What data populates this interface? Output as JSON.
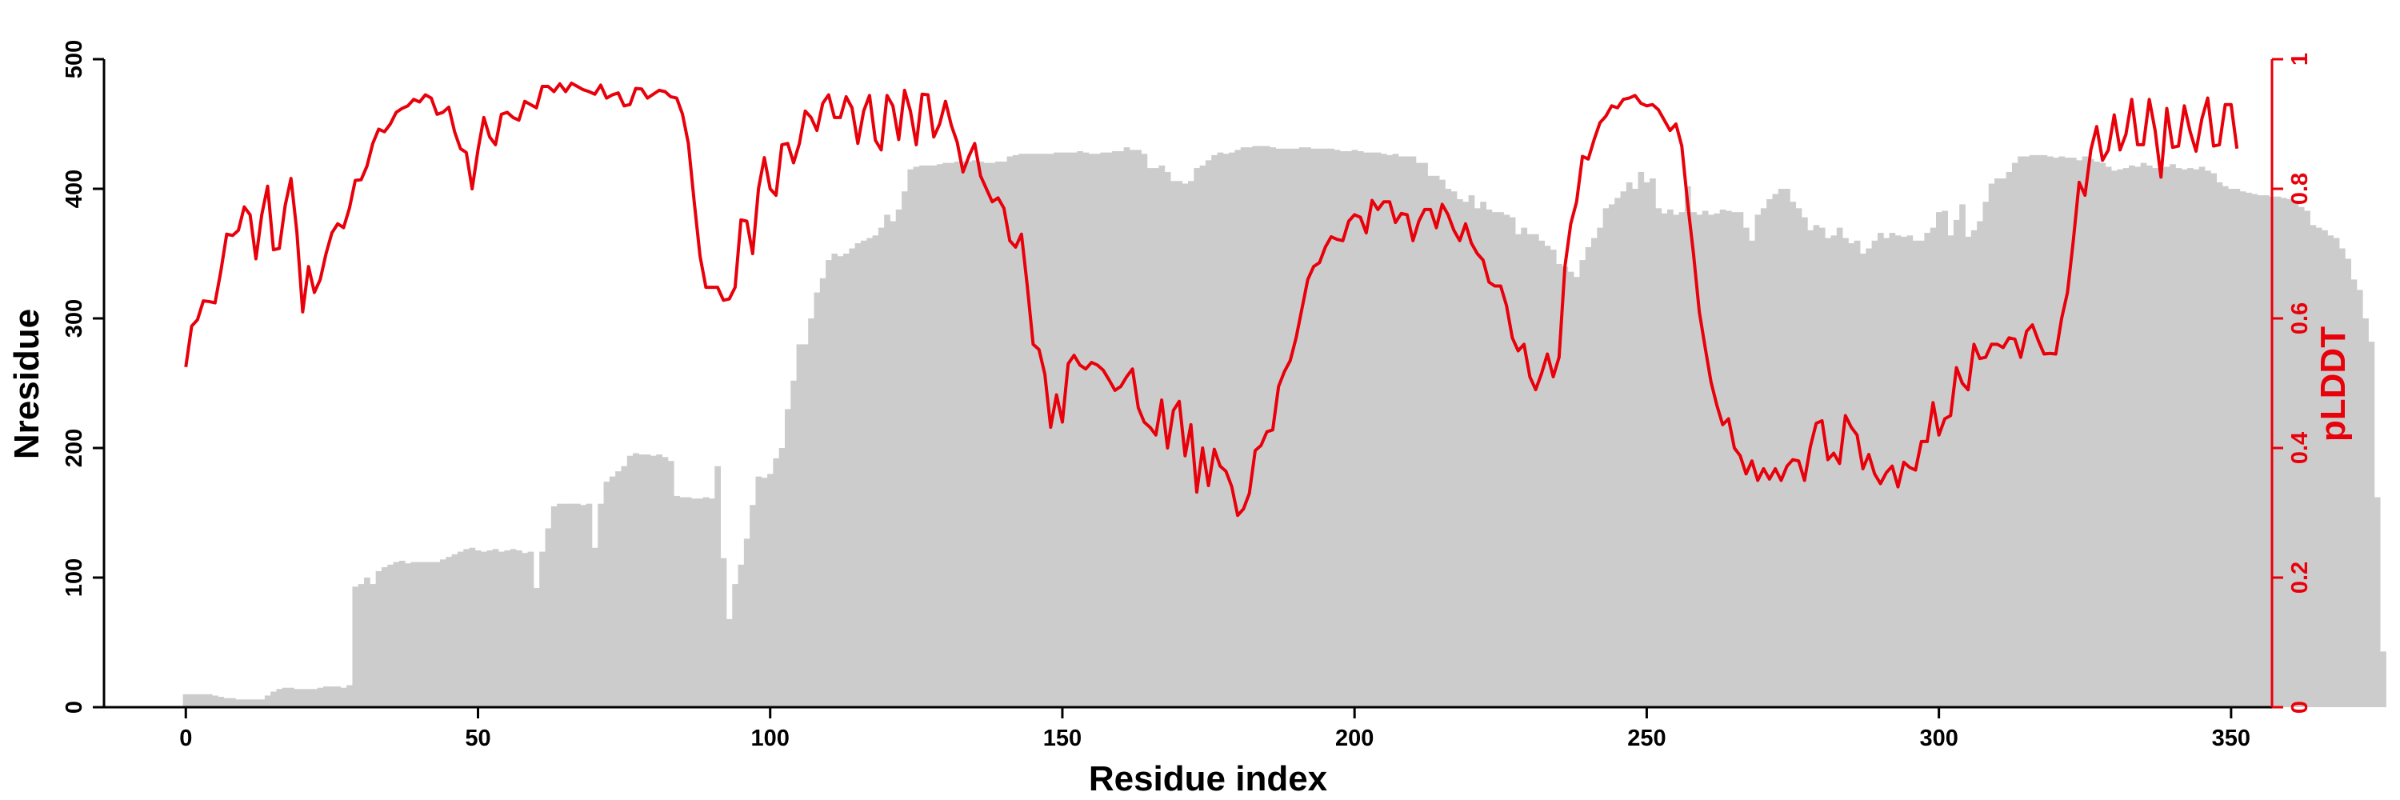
{
  "chart_data": {
    "type": "bar+line",
    "xlabel": "Residue index",
    "ylabel_left": "Nresidue",
    "ylabel_right": "pLDDT",
    "xlim": [
      -14,
      357
    ],
    "ylim_left": [
      0,
      500
    ],
    "ylim_right": [
      0,
      1
    ],
    "x_ticks": [
      0,
      50,
      100,
      150,
      200,
      250,
      300,
      350
    ],
    "y_left_ticks": [
      0,
      100,
      200,
      300,
      400,
      500
    ],
    "y_right_ticks": [
      0,
      0.2,
      0.4,
      0.6,
      0.8,
      1
    ],
    "grid": false,
    "legend": "none",
    "colors": {
      "bars": "#cccccc",
      "line": "#e8000b",
      "right_axis": "#e8000b",
      "left_axis": "#000000"
    },
    "series": [
      {
        "kind": "bar",
        "axis": "left",
        "values": [
          10,
          10,
          10,
          10,
          10,
          9,
          8,
          7,
          7,
          6,
          6,
          6,
          6,
          6,
          9,
          12,
          14,
          15,
          15,
          14,
          14,
          14,
          14,
          15,
          16,
          16,
          16,
          15,
          17,
          93,
          95,
          100,
          95,
          105,
          108,
          110,
          112,
          113,
          111,
          112,
          112,
          112,
          112,
          112,
          114,
          116,
          118,
          120,
          122,
          123,
          121,
          120,
          121,
          122,
          120,
          121,
          122,
          121,
          119,
          120,
          92,
          120,
          138,
          155,
          157,
          157,
          157,
          157,
          156,
          157,
          123,
          157,
          174,
          178,
          182,
          186,
          194,
          196,
          195,
          195,
          194,
          195,
          193,
          190,
          163,
          162,
          162,
          161,
          161,
          162,
          161,
          186,
          115,
          68,
          95,
          110,
          130,
          156,
          178,
          177,
          180,
          192,
          200,
          230,
          252,
          280,
          280,
          300,
          320,
          331,
          345,
          350,
          348,
          350,
          354,
          358,
          360,
          362,
          364,
          370,
          380,
          375,
          384,
          398,
          415,
          417,
          418,
          418,
          418,
          419,
          420,
          420,
          421,
          421,
          421,
          422,
          421,
          420,
          420,
          421,
          421,
          425,
          426,
          427,
          427,
          427,
          427,
          427,
          427,
          428,
          428,
          428,
          428,
          429,
          428,
          427,
          427,
          428,
          428,
          429,
          429,
          432,
          430,
          430,
          427,
          416,
          416,
          418,
          413,
          406,
          406,
          404,
          406,
          416,
          418,
          422,
          426,
          428,
          427,
          428,
          430,
          432,
          432,
          433,
          433,
          433,
          432,
          431,
          431,
          431,
          431,
          432,
          432,
          431,
          431,
          431,
          431,
          430,
          429,
          429,
          430,
          429,
          428,
          428,
          428,
          427,
          426,
          427,
          425,
          425,
          425,
          420,
          420,
          410,
          410,
          407,
          400,
          398,
          392,
          390,
          395,
          385,
          390,
          384,
          382,
          382,
          380,
          378,
          365,
          370,
          365,
          365,
          360,
          356,
          353,
          342,
          340,
          336,
          332,
          345,
          355,
          362,
          370,
          385,
          388,
          393,
          398,
          405,
          400,
          413,
          405,
          408,
          385,
          381,
          384,
          380,
          382,
          402,
          382,
          380,
          383,
          380,
          381,
          384,
          383,
          382,
          382,
          370,
          360,
          380,
          385,
          392,
          396,
          400,
          400,
          390,
          385,
          378,
          368,
          372,
          370,
          362,
          364,
          370,
          362,
          358,
          360,
          350,
          354,
          360,
          366,
          362,
          366,
          364,
          363,
          364,
          360,
          360,
          366,
          370,
          382,
          383,
          364,
          376,
          388,
          363,
          368,
          375,
          390,
          404,
          408,
          408,
          413,
          420,
          425,
          425,
          426,
          426,
          426,
          425,
          424,
          425,
          424,
          424,
          422,
          425,
          423,
          421,
          420,
          417,
          414,
          415,
          416,
          418,
          417,
          420,
          418,
          416,
          416,
          417,
          419,
          416,
          415,
          416,
          415,
          417,
          414,
          412,
          405,
          402,
          400,
          400,
          398,
          397,
          396,
          395,
          395,
          394,
          394,
          393,
          392,
          390,
          386,
          383,
          372,
          370,
          368,
          364,
          362,
          354,
          346,
          330,
          322,
          300,
          282,
          162,
          43
        ]
      },
      {
        "kind": "line",
        "axis": "right",
        "name": "pLDDT",
        "values": [
          0.525,
          0.588,
          0.598,
          0.627,
          0.626,
          0.624,
          0.673,
          0.73,
          0.728,
          0.736,
          0.772,
          0.76,
          0.692,
          0.76,
          0.804,
          0.706,
          0.708,
          0.774,
          0.816,
          0.734,
          0.61,
          0.68,
          0.64,
          0.66,
          0.7,
          0.732,
          0.746,
          0.74,
          0.77,
          0.813,
          0.814,
          0.835,
          0.87,
          0.892,
          0.888,
          0.9,
          0.918,
          0.924,
          0.928,
          0.938,
          0.934,
          0.945,
          0.94,
          0.915,
          0.918,
          0.926,
          0.888,
          0.862,
          0.856,
          0.8,
          0.86,
          0.91,
          0.88,
          0.868,
          0.915,
          0.918,
          0.91,
          0.906,
          0.935,
          0.93,
          0.925,
          0.958,
          0.958,
          0.95,
          0.962,
          0.95,
          0.963,
          0.958,
          0.953,
          0.95,
          0.946,
          0.96,
          0.94,
          0.945,
          0.948,
          0.928,
          0.93,
          0.955,
          0.954,
          0.94,
          0.946,
          0.952,
          0.95,
          0.942,
          0.94,
          0.915,
          0.87,
          0.78,
          0.696,
          0.648,
          0.648,
          0.648,
          0.628,
          0.63,
          0.648,
          0.752,
          0.75,
          0.7,
          0.8,
          0.848,
          0.8,
          0.79,
          0.868,
          0.87,
          0.84,
          0.87,
          0.92,
          0.91,
          0.89,
          0.932,
          0.945,
          0.91,
          0.91,
          0.942,
          0.925,
          0.87,
          0.92,
          0.944,
          0.875,
          0.86,
          0.944,
          0.928,
          0.876,
          0.952,
          0.92,
          0.868,
          0.946,
          0.945,
          0.88,
          0.9,
          0.935,
          0.898,
          0.872,
          0.826,
          0.85,
          0.87,
          0.82,
          0.8,
          0.78,
          0.786,
          0.77,
          0.72,
          0.71,
          0.73,
          0.65,
          0.56,
          0.552,
          0.514,
          0.432,
          0.482,
          0.44,
          0.53,
          0.543,
          0.528,
          0.522,
          0.532,
          0.528,
          0.52,
          0.505,
          0.489,
          0.495,
          0.51,
          0.522,
          0.462,
          0.44,
          0.432,
          0.42,
          0.474,
          0.4,
          0.458,
          0.472,
          0.388,
          0.436,
          0.332,
          0.4,
          0.342,
          0.398,
          0.372,
          0.364,
          0.34,
          0.296,
          0.306,
          0.33,
          0.396,
          0.404,
          0.425,
          0.428,
          0.495,
          0.518,
          0.535,
          0.57,
          0.615,
          0.66,
          0.68,
          0.686,
          0.71,
          0.726,
          0.722,
          0.72,
          0.75,
          0.76,
          0.756,
          0.732,
          0.782,
          0.768,
          0.78,
          0.78,
          0.748,
          0.762,
          0.76,
          0.72,
          0.75,
          0.768,
          0.768,
          0.74,
          0.776,
          0.76,
          0.736,
          0.72,
          0.746,
          0.716,
          0.7,
          0.69,
          0.656,
          0.65,
          0.65,
          0.62,
          0.57,
          0.55,
          0.56,
          0.51,
          0.49,
          0.515,
          0.545,
          0.51,
          0.54,
          0.68,
          0.746,
          0.78,
          0.85,
          0.846,
          0.876,
          0.902,
          0.912,
          0.928,
          0.925,
          0.938,
          0.94,
          0.944,
          0.932,
          0.928,
          0.93,
          0.922,
          0.906,
          0.89,
          0.9,
          0.866,
          0.778,
          0.7,
          0.61,
          0.555,
          0.502,
          0.466,
          0.436,
          0.445,
          0.4,
          0.388,
          0.36,
          0.38,
          0.35,
          0.368,
          0.352,
          0.368,
          0.35,
          0.372,
          0.382,
          0.38,
          0.35,
          0.402,
          0.438,
          0.442,
          0.382,
          0.392,
          0.376,
          0.45,
          0.432,
          0.42,
          0.368,
          0.39,
          0.36,
          0.345,
          0.362,
          0.372,
          0.34,
          0.378,
          0.37,
          0.366,
          0.41,
          0.41,
          0.47,
          0.42,
          0.445,
          0.45,
          0.524,
          0.5,
          0.49,
          0.56,
          0.538,
          0.54,
          0.56,
          0.56,
          0.555,
          0.57,
          0.568,
          0.54,
          0.58,
          0.59,
          0.566,
          0.545,
          0.546,
          0.545,
          0.6,
          0.64,
          0.72,
          0.81,
          0.79,
          0.86,
          0.896,
          0.844,
          0.86,
          0.914,
          0.86,
          0.884,
          0.938,
          0.868,
          0.868,
          0.938,
          0.89,
          0.818,
          0.924,
          0.864,
          0.866,
          0.928,
          0.888,
          0.858,
          0.908,
          0.94,
          0.866,
          0.868,
          0.93,
          0.93,
          0.862
        ]
      }
    ]
  }
}
